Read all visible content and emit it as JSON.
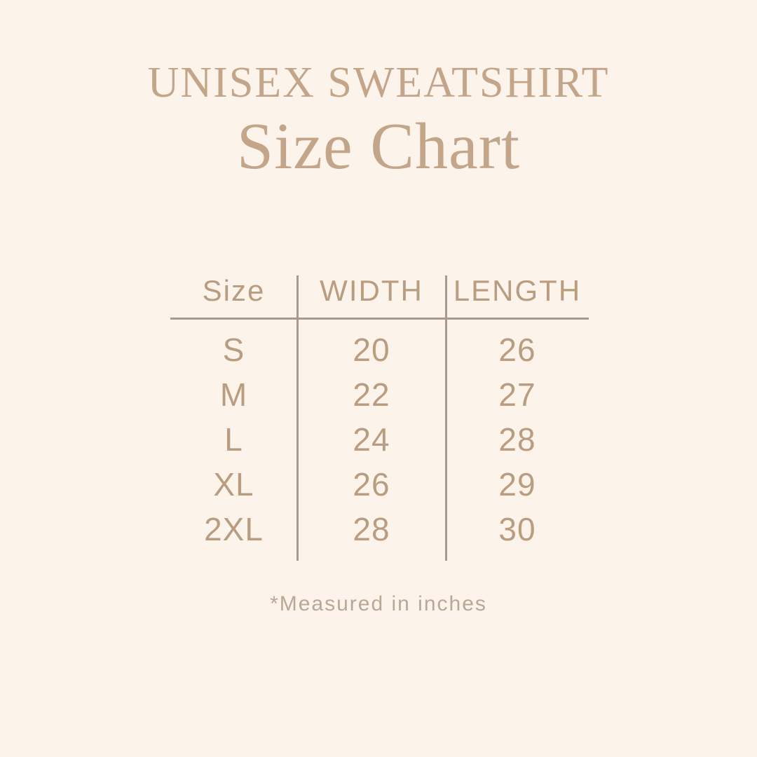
{
  "colors": {
    "background": "#fcf3ea",
    "title": "#c3a58a",
    "table_text": "#b99d80",
    "lines": "#a89b8c",
    "footnote": "#b8a896"
  },
  "chart_data": {
    "type": "table",
    "title": "UNISEX SWEATSHIRT",
    "subtitle": "Size Chart",
    "columns": [
      "Size",
      "WIDTH",
      "LENGTH"
    ],
    "rows": [
      [
        "S",
        "20",
        "26"
      ],
      [
        "M",
        "22",
        "27"
      ],
      [
        "L",
        "24",
        "28"
      ],
      [
        "XL",
        "26",
        "29"
      ],
      [
        "2XL",
        "28",
        "30"
      ]
    ],
    "note": "*Measured in inches",
    "units": "inches",
    "layout": "header row separated by horizontal rule; two vertical column dividers; no outer border"
  }
}
